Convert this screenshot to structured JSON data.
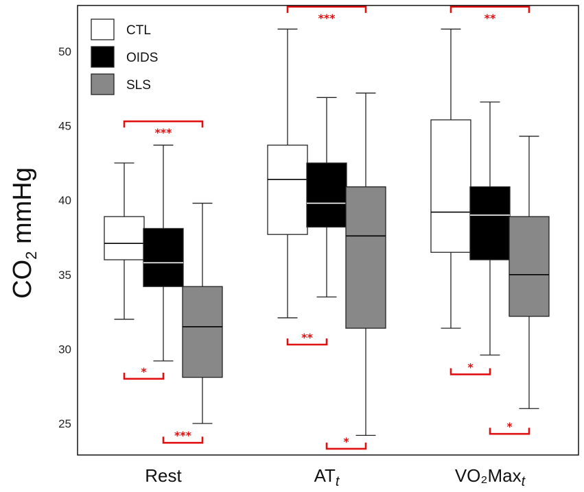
{
  "chart_data": {
    "type": "box",
    "ylabel": "CO2 mmHg",
    "ylabel_parts": {
      "base": "CO",
      "sub": "2",
      "rest": " mmHg"
    },
    "ylim": [
      23,
      53
    ],
    "yticks": [
      25,
      30,
      35,
      40,
      45,
      50
    ],
    "categories": [
      {
        "label": "Rest",
        "base": "Rest",
        "sub": ""
      },
      {
        "label": "AT_t",
        "base": "AT",
        "sub": "t"
      },
      {
        "label": "VO2Max_t",
        "base": "VO₂Max",
        "sub": "t"
      }
    ],
    "series": [
      {
        "name": "CTL",
        "fill": "#ffffff",
        "median_color": "#000000"
      },
      {
        "name": "OIDS",
        "fill": "#000000",
        "median_color": "#ffffff"
      },
      {
        "name": "SLS",
        "fill": "#888888",
        "median_color": "#000000"
      }
    ],
    "boxes": [
      [
        {
          "min": 32.0,
          "q1": 36.0,
          "median": 37.1,
          "q3": 38.9,
          "max": 42.5
        },
        {
          "min": 29.2,
          "q1": 34.2,
          "median": 35.8,
          "q3": 38.1,
          "max": 43.7
        },
        {
          "min": 25.0,
          "q1": 28.1,
          "median": 31.5,
          "q3": 34.2,
          "max": 39.8
        }
      ],
      [
        {
          "min": 32.1,
          "q1": 37.7,
          "median": 41.4,
          "q3": 43.7,
          "max": 51.5
        },
        {
          "min": 33.5,
          "q1": 38.2,
          "median": 39.8,
          "q3": 42.5,
          "max": 46.9
        },
        {
          "min": 24.2,
          "q1": 31.4,
          "median": 37.6,
          "q3": 40.9,
          "max": 47.2
        }
      ],
      [
        {
          "min": 31.4,
          "q1": 36.5,
          "median": 39.2,
          "q3": 45.4,
          "max": 51.5
        },
        {
          "min": 29.6,
          "q1": 36.0,
          "median": 39.0,
          "q3": 40.9,
          "max": 46.6
        },
        {
          "min": 26.0,
          "q1": 32.2,
          "median": 35.0,
          "q3": 38.9,
          "max": 44.3
        }
      ]
    ],
    "significance": [
      {
        "category": 0,
        "from": 0,
        "to": 2,
        "y": 45.3,
        "side": "top",
        "label": "***"
      },
      {
        "category": 0,
        "from": 0,
        "to": 1,
        "y": 28.0,
        "side": "bottom",
        "label": "*"
      },
      {
        "category": 0,
        "from": 1,
        "to": 2,
        "y": 23.7,
        "side": "bottom",
        "label": "***"
      },
      {
        "category": 1,
        "from": 0,
        "to": 2,
        "y": 53.0,
        "side": "top",
        "label": "***"
      },
      {
        "category": 1,
        "from": 0,
        "to": 1,
        "y": 30.3,
        "side": "bottom",
        "label": "**"
      },
      {
        "category": 1,
        "from": 1,
        "to": 2,
        "y": 23.3,
        "side": "bottom",
        "label": "*"
      },
      {
        "category": 2,
        "from": 0,
        "to": 2,
        "y": 53.0,
        "side": "top",
        "label": "**"
      },
      {
        "category": 2,
        "from": 0,
        "to": 1,
        "y": 28.3,
        "side": "bottom",
        "label": "*"
      },
      {
        "category": 2,
        "from": 1,
        "to": 2,
        "y": 24.3,
        "side": "bottom",
        "label": "*"
      }
    ],
    "legend": {
      "position": "top-left",
      "entries": [
        "CTL",
        "OIDS",
        "SLS"
      ]
    },
    "significance_color": "#e01010",
    "grid": false
  }
}
